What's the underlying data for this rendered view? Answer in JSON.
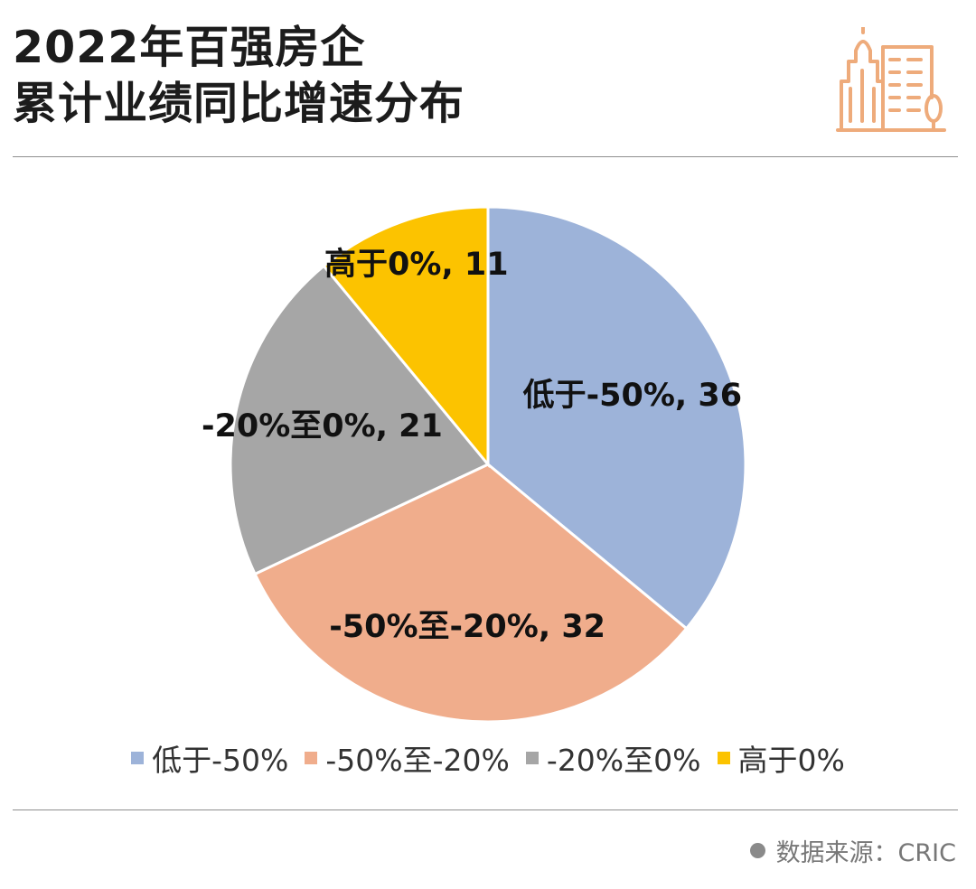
{
  "header": {
    "title_line1": "2022年百强房企",
    "title_line2": "累计业绩同比增速分布"
  },
  "chart_data": {
    "type": "pie",
    "title": "2022年百强房企累计业绩同比增速分布",
    "categories": [
      "低于-50%",
      "-50%至-20%",
      "-20%至0%",
      "高于0%"
    ],
    "values": [
      36,
      32,
      21,
      11
    ],
    "data_labels": [
      "低于-50%, 36",
      "-50%至-20%, 32",
      "-20%至0%, 21",
      "高于0%, 11"
    ],
    "colors": [
      "#9db3d9",
      "#f0ad8c",
      "#a6a6a6",
      "#fcc300"
    ],
    "start_angle": "12 o'clock",
    "direction": "clockwise",
    "legend": "bottom"
  },
  "footer": {
    "source": "数据来源：CRIC"
  },
  "theme": {
    "logo_color": "#eeab7b",
    "rule_color": "#8f8f8f"
  }
}
